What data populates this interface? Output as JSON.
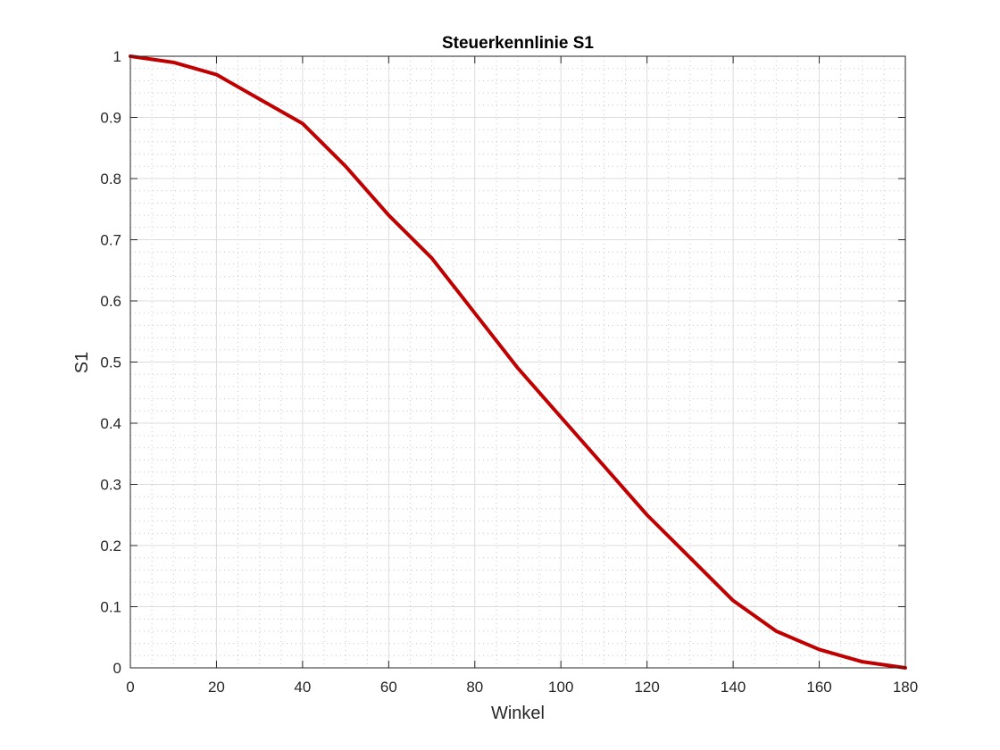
{
  "chart_data": {
    "type": "line",
    "title": "Steuerkennlinie S1",
    "xlabel": "Winkel",
    "ylabel": "S1",
    "xlim": [
      0,
      180
    ],
    "ylim": [
      0,
      1
    ],
    "x_ticks": [
      0,
      20,
      40,
      60,
      80,
      100,
      120,
      140,
      160,
      180
    ],
    "y_ticks": [
      0,
      0.1,
      0.2,
      0.3,
      0.4,
      0.5,
      0.6,
      0.7,
      0.8,
      0.9,
      1
    ],
    "x_tick_labels": [
      "0",
      "20",
      "40",
      "60",
      "80",
      "100",
      "120",
      "140",
      "160",
      "180"
    ],
    "y_tick_labels": [
      "0",
      "0.1",
      "0.2",
      "0.3",
      "0.4",
      "0.5",
      "0.6",
      "0.7",
      "0.8",
      "0.9",
      "1"
    ],
    "grid": true,
    "minor_grid": true,
    "colors": {
      "line": "#c00000",
      "axis": "#262626",
      "grid_major": "#dcdcdc",
      "grid_minor": "#c8c8c8"
    },
    "series": [
      {
        "x": [
          0,
          10,
          20,
          30,
          40,
          50,
          60,
          70,
          80,
          90,
          100,
          110,
          120,
          130,
          140,
          150,
          160,
          170,
          180
        ],
        "values": [
          1.0,
          0.99,
          0.97,
          0.93,
          0.89,
          0.82,
          0.74,
          0.67,
          0.58,
          0.49,
          0.41,
          0.33,
          0.25,
          0.18,
          0.11,
          0.06,
          0.03,
          0.01,
          0.0
        ]
      }
    ]
  }
}
